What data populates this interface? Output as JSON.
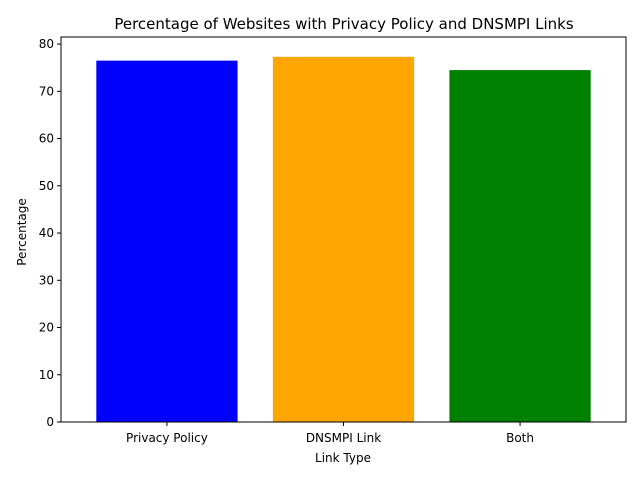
{
  "chart_data": {
    "type": "bar",
    "title": "Percentage of Websites with Privacy Policy and DNSMPI Links",
    "xlabel": "Link Type",
    "ylabel": "Percentage",
    "categories": [
      "Privacy Policy",
      "DNSMPI Link",
      "Both"
    ],
    "values": [
      76.5,
      77.3,
      74.5
    ],
    "colors": [
      "#0000ff",
      "#ffa500",
      "#008000"
    ],
    "ylim": [
      0,
      81.5
    ],
    "yticks": [
      0,
      10,
      20,
      30,
      40,
      50,
      60,
      70,
      80
    ],
    "grid": false,
    "legend": "none"
  }
}
